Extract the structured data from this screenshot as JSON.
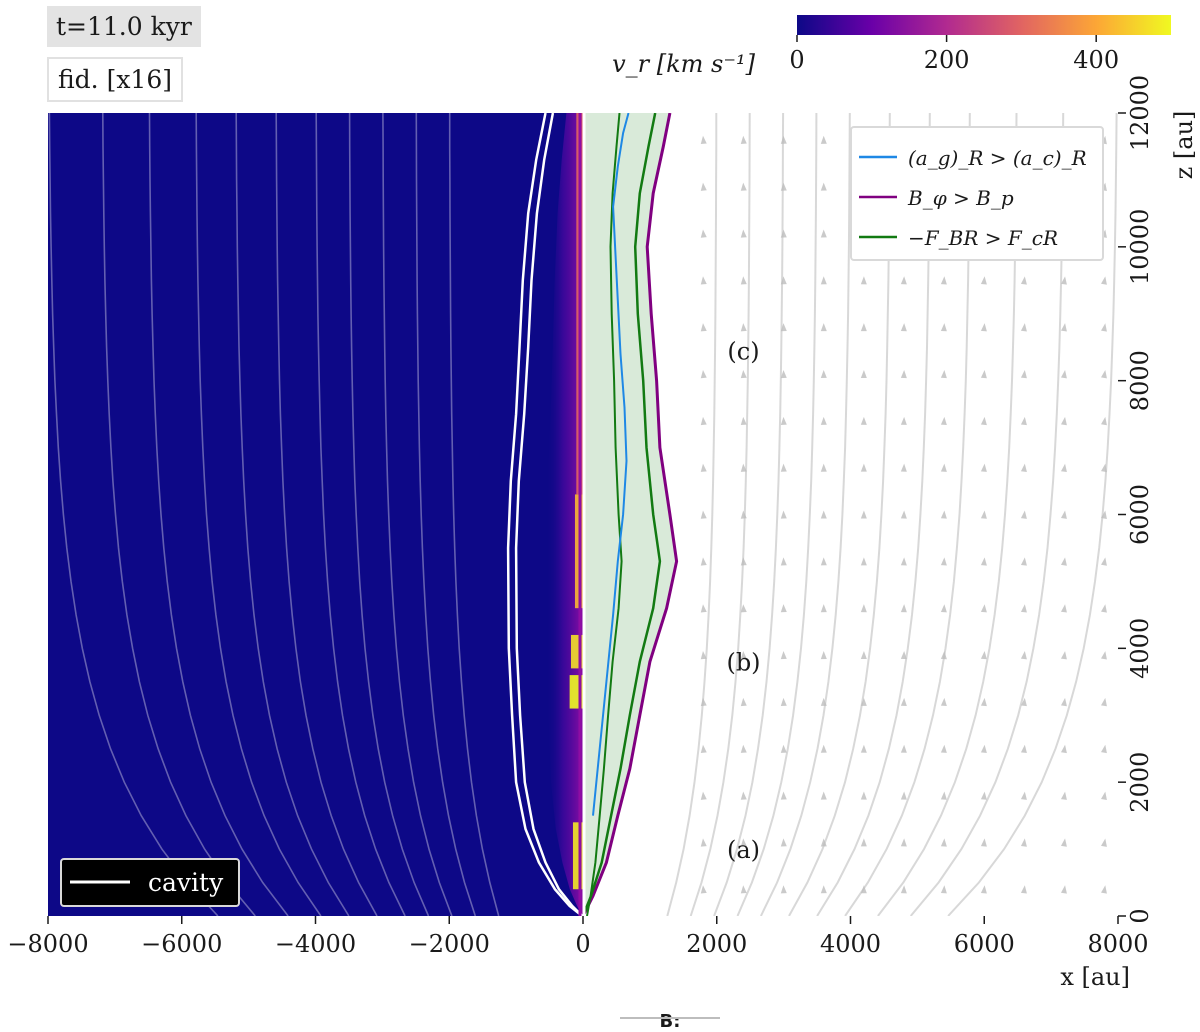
{
  "time_label": "t=11.0 kyr",
  "model_label": "fid. [x16]",
  "footer_label": "B:",
  "chart_data": {
    "type": "heatmap",
    "title": "",
    "xlabel": "x [au]",
    "ylabel": "z [au]",
    "xlim": [
      -8000,
      8000
    ],
    "ylim": [
      0,
      12000
    ],
    "x_ticks": [
      -8000,
      -6000,
      -4000,
      -2000,
      0,
      2000,
      4000,
      6000,
      8000
    ],
    "x_tick_labels": [
      "−8000",
      "−6000",
      "−4000",
      "−2000",
      "0",
      "2000",
      "4000",
      "6000",
      "8000"
    ],
    "y_ticks": [
      0,
      2000,
      4000,
      6000,
      8000,
      10000,
      12000
    ],
    "y_tick_labels": [
      "0",
      "2000",
      "4000",
      "6000",
      "8000",
      "10000",
      "12000"
    ],
    "colorbar": {
      "label": "v_r [km s⁻¹]",
      "range": [
        0,
        500
      ],
      "ticks": [
        0,
        200,
        400
      ],
      "tick_labels": [
        "0",
        "200",
        "400"
      ],
      "colors": [
        "#0d0887",
        "#6a00a8",
        "#b12a90",
        "#e16462",
        "#fca636",
        "#f0f921"
      ]
    },
    "legend_left": {
      "position": "lower-left",
      "entries": [
        {
          "label": "cavity",
          "color": "#ffffff"
        }
      ]
    },
    "legend_right": {
      "position": "top-right",
      "entries": [
        {
          "label": "(a_g)_R > (a_c)_R",
          "color": "#1e88e5"
        },
        {
          "label": "B_φ > B_p",
          "color": "#800080"
        },
        {
          "label": "−F_BR > F_cR",
          "color": "#127a12"
        }
      ]
    },
    "annotations": [
      {
        "text": "(a)",
        "x": 2400,
        "z": 1000
      },
      {
        "text": "(b)",
        "x": 2400,
        "z": 3800
      },
      {
        "text": "(c)",
        "x": 2400,
        "z": 8450
      }
    ],
    "cavity_boundary": {
      "x_outer": [
        -10,
        -200,
        -420,
        -660,
        -860,
        -1000,
        -1060,
        -1110,
        -1120,
        -1080,
        -1000,
        -950,
        -900,
        -820,
        -700,
        -560
      ],
      "x_inner": [
        -10,
        -160,
        -360,
        -560,
        -740,
        -870,
        -940,
        -990,
        -1000,
        -960,
        -880,
        -820,
        -770,
        -690,
        -580,
        -450
      ],
      "z": [
        0,
        150,
        400,
        800,
        1300,
        2000,
        3000,
        4000,
        5500,
        6500,
        7500,
        8500,
        9500,
        10500,
        11300,
        12000
      ]
    },
    "outflow_boundary_Bphi_gt_Bp": {
      "x": [
        0,
        150,
        350,
        520,
        700,
        850,
        1000,
        1250,
        1400,
        1300,
        1150,
        1100,
        1020,
        960,
        1050,
        1200,
        1300
      ],
      "z": [
        0,
        300,
        800,
        1500,
        2200,
        3000,
        3800,
        4600,
        5300,
        6000,
        7000,
        8000,
        9000,
        10000,
        10800,
        11500,
        12000
      ]
    },
    "outflow_boundary_FBR_gt_FcR": {
      "x": [
        0,
        120,
        280,
        420,
        560,
        700,
        850,
        1050,
        1150,
        1050,
        950,
        900,
        820,
        780,
        850,
        980,
        1080
      ],
      "z": [
        0,
        300,
        800,
        1500,
        2200,
        3000,
        3800,
        4600,
        5300,
        6000,
        7000,
        8000,
        9000,
        10000,
        10800,
        11500,
        12000
      ]
    },
    "outflow_boundary_ag_gt_ac": {
      "x": [
        150,
        250,
        350,
        450,
        520,
        600,
        650,
        620,
        560,
        520,
        480,
        450,
        520,
        600,
        680
      ],
      "z": [
        1500,
        2500,
        3500,
        4500,
        5300,
        6000,
        6800,
        7600,
        8400,
        9200,
        10000,
        10600,
        11200,
        11700,
        12000
      ]
    },
    "jet_high_velocity_segments": [
      {
        "z_start": 400,
        "z_end": 1400,
        "x_left": -150,
        "x_right": 0,
        "v": 480
      },
      {
        "z_start": 3100,
        "z_end": 3600,
        "x_left": -200,
        "x_right": 0,
        "v": 500
      },
      {
        "z_start": 3700,
        "z_end": 4200,
        "x_left": -180,
        "x_right": 0,
        "v": 470
      },
      {
        "z_start": 4600,
        "z_end": 6300,
        "x_left": -120,
        "x_right": 0,
        "v": 420
      },
      {
        "z_start": 6300,
        "z_end": 12000,
        "x_left": -100,
        "x_right": 0,
        "v": 300
      }
    ],
    "field_line_footpoints": [
      -7800,
      -7000,
      -6300,
      -5600,
      -5000,
      -4400,
      -3800,
      -3300,
      -2800,
      -2300,
      -1800,
      1800,
      2300,
      2800,
      3300,
      3800,
      4400,
      5000,
      5600,
      6300,
      7000,
      7800
    ]
  }
}
